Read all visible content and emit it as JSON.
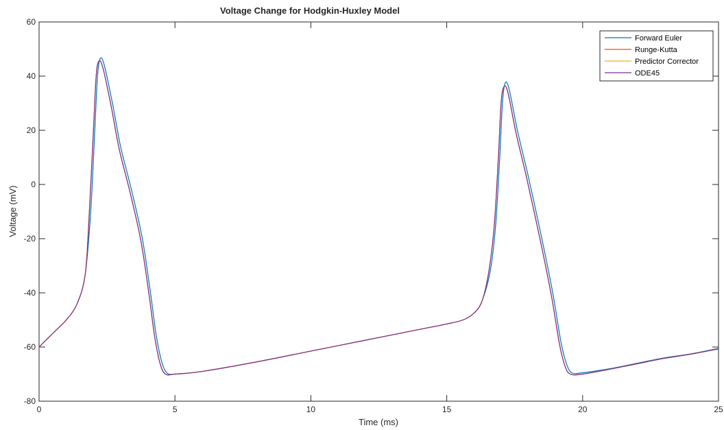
{
  "chart_data": {
    "type": "line",
    "title": "Voltage Change for Hodgkin-Huxley Model",
    "xlabel": "Time (ms)",
    "ylabel": "Voltage (mV)",
    "xlim": [
      0,
      25
    ],
    "ylim": [
      -80,
      60
    ],
    "xticks": [
      0,
      5,
      10,
      15,
      20,
      25
    ],
    "yticks": [
      -80,
      -60,
      -40,
      -20,
      0,
      20,
      40,
      60
    ],
    "grid": false,
    "legend_position": "top-right",
    "series": [
      {
        "name": "Forward Euler",
        "color": "#0072BD",
        "x": [
          0,
          0.5,
          1.0,
          1.4,
          1.7,
          1.9,
          2.05,
          2.15,
          2.25,
          2.4,
          2.7,
          3.0,
          3.4,
          3.8,
          4.1,
          4.3,
          4.5,
          4.7,
          5.0,
          6.0,
          8.0,
          10.0,
          12.0,
          14.0,
          15.0,
          15.6,
          16.0,
          16.3,
          16.6,
          16.8,
          16.95,
          17.05,
          17.15,
          17.3,
          17.6,
          18.0,
          18.5,
          18.9,
          19.2,
          19.4,
          19.6,
          20.0,
          21.0,
          22.0,
          23.0,
          24.0,
          25.0
        ],
        "y": [
          -60,
          -55,
          -50,
          -44,
          -33,
          -10,
          20,
          40,
          46.5,
          44,
          30,
          14,
          -2,
          -20,
          -40,
          -55,
          -65,
          -69.5,
          -70,
          -69,
          -65.5,
          -61.5,
          -57.5,
          -53.5,
          -51.5,
          -50,
          -47.5,
          -43,
          -32,
          -15,
          10,
          30,
          37.5,
          35,
          20,
          3,
          -20,
          -40,
          -58,
          -66,
          -69.5,
          -69.5,
          -68,
          -66,
          -64,
          -62.5,
          -60.5
        ]
      },
      {
        "name": "Runge-Kutta",
        "color": "#D95319",
        "x": [
          0,
          0.5,
          1.0,
          1.4,
          1.7,
          1.85,
          2.0,
          2.1,
          2.2,
          2.35,
          2.65,
          2.95,
          3.35,
          3.75,
          4.05,
          4.25,
          4.45,
          4.65,
          5.0,
          6.0,
          8.0,
          10.0,
          12.0,
          14.0,
          15.0,
          15.6,
          16.0,
          16.3,
          16.55,
          16.75,
          16.9,
          17.0,
          17.1,
          17.25,
          17.55,
          17.95,
          18.45,
          18.85,
          19.15,
          19.35,
          19.55,
          20.0,
          21.0,
          22.0,
          23.0,
          24.0,
          25.0
        ],
        "y": [
          -60,
          -55,
          -50,
          -44,
          -33,
          -10,
          20,
          40,
          45.5,
          43,
          29,
          13,
          -3,
          -21,
          -41,
          -56,
          -66,
          -70,
          -70,
          -69,
          -65.5,
          -61.5,
          -57.5,
          -53.5,
          -51.5,
          -50,
          -47.5,
          -43,
          -32,
          -15,
          10,
          30,
          36,
          34,
          19,
          2,
          -21,
          -41,
          -59,
          -67,
          -70,
          -70,
          -68.2,
          -66.2,
          -64.2,
          -62.6,
          -60.7
        ]
      },
      {
        "name": "Predictor Corrector",
        "color": "#EDB120",
        "x": [
          0,
          0.5,
          1.0,
          1.4,
          1.7,
          1.85,
          2.0,
          2.1,
          2.2,
          2.35,
          2.65,
          2.95,
          3.35,
          3.75,
          4.05,
          4.25,
          4.45,
          4.65,
          5.0,
          6.0,
          8.0,
          10.0,
          12.0,
          14.0,
          15.0,
          15.6,
          16.0,
          16.3,
          16.55,
          16.75,
          16.9,
          17.0,
          17.1,
          17.25,
          17.55,
          17.95,
          18.45,
          18.85,
          19.15,
          19.35,
          19.55,
          20.0,
          21.0,
          22.0,
          23.0,
          24.0,
          25.0
        ],
        "y": [
          -60,
          -55,
          -50,
          -44,
          -33,
          -10,
          20,
          40,
          45.5,
          43,
          29,
          13,
          -3,
          -21,
          -41,
          -56,
          -66,
          -70,
          -70,
          -69,
          -65.5,
          -61.5,
          -57.5,
          -53.5,
          -51.5,
          -50,
          -47.5,
          -43,
          -32,
          -15,
          10,
          30,
          36,
          34,
          19,
          2,
          -21,
          -41,
          -59,
          -67,
          -70,
          -70,
          -68.2,
          -66.2,
          -64.2,
          -62.6,
          -60.7
        ]
      },
      {
        "name": "ODE45",
        "color": "#7E2F8E",
        "x": [
          0,
          0.5,
          1.0,
          1.4,
          1.7,
          1.85,
          2.0,
          2.1,
          2.2,
          2.35,
          2.65,
          2.95,
          3.35,
          3.75,
          4.05,
          4.25,
          4.45,
          4.65,
          5.0,
          6.0,
          8.0,
          10.0,
          12.0,
          14.0,
          15.0,
          15.6,
          16.0,
          16.3,
          16.55,
          16.75,
          16.9,
          17.0,
          17.1,
          17.25,
          17.55,
          17.95,
          18.45,
          18.85,
          19.15,
          19.35,
          19.55,
          20.0,
          21.0,
          22.0,
          23.0,
          24.0,
          25.0
        ],
        "y": [
          -60,
          -55,
          -50,
          -44,
          -33,
          -10,
          20,
          40,
          45.5,
          43,
          29,
          13,
          -3,
          -21,
          -41,
          -56,
          -66,
          -70,
          -70,
          -69,
          -65.5,
          -61.5,
          -57.5,
          -53.5,
          -51.5,
          -50,
          -47.5,
          -43,
          -32,
          -15,
          10,
          30,
          36,
          34,
          19,
          2,
          -21,
          -41,
          -59,
          -67,
          -70,
          -70,
          -68.2,
          -66.2,
          -64.2,
          -62.6,
          -60.7
        ]
      }
    ]
  }
}
